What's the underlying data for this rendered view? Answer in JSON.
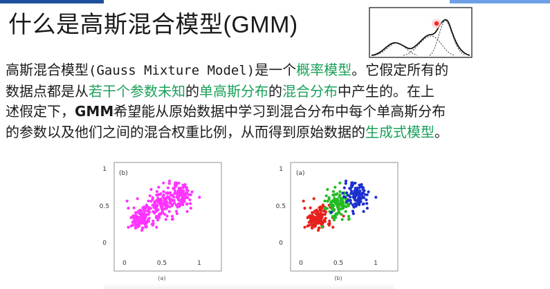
{
  "colors": {
    "text": "#1a1a1a",
    "highlight": "#1aa05a",
    "magenta": "#ff33ff",
    "red": "#e8211c",
    "green": "#22bb22",
    "blue": "#1c2fcf",
    "topbar_dark": "#1f4f9a",
    "topbar_light": "#6fa0e6"
  },
  "title": {
    "cjk": "什么是高斯混合模型",
    "latin": "(GMM)"
  },
  "paragraph": {
    "line1": {
      "a": "高斯混合模型",
      "b": "(Gauss Mixture Model)",
      "c": "是一个",
      "d": "概率模型",
      "e": "。它假定所有的"
    },
    "line2": {
      "a": "数据点都是从",
      "b": "若干个参数未知",
      "c": "的",
      "d": "单高斯分布",
      "e": "的",
      "f": "混合分布",
      "g": "中产生的。在上"
    },
    "line3": {
      "a": "述假定下，",
      "b": "GMM",
      "c": "希望能从原始数据中学习到混合分布中每个单高斯分布"
    },
    "line4": {
      "a": "的参数以及他们之间的混合权重比例，从而得到原始数据的",
      "b": "生成式模型",
      "c": "。"
    }
  },
  "thumbnail": {
    "icon": "gmm-curve-icon"
  },
  "figure": {
    "left": {
      "panel_label": "(b)",
      "sublabel": "(a)",
      "yticks": [
        "1",
        "0.5",
        "0"
      ],
      "xticks": [
        "0",
        "0.5",
        "1"
      ]
    },
    "right": {
      "panel_label": "(a)",
      "sublabel": "(b)",
      "yticks": [
        "1",
        "0.5",
        "0"
      ],
      "xticks": [
        "0",
        "0.5",
        "1"
      ]
    }
  }
}
